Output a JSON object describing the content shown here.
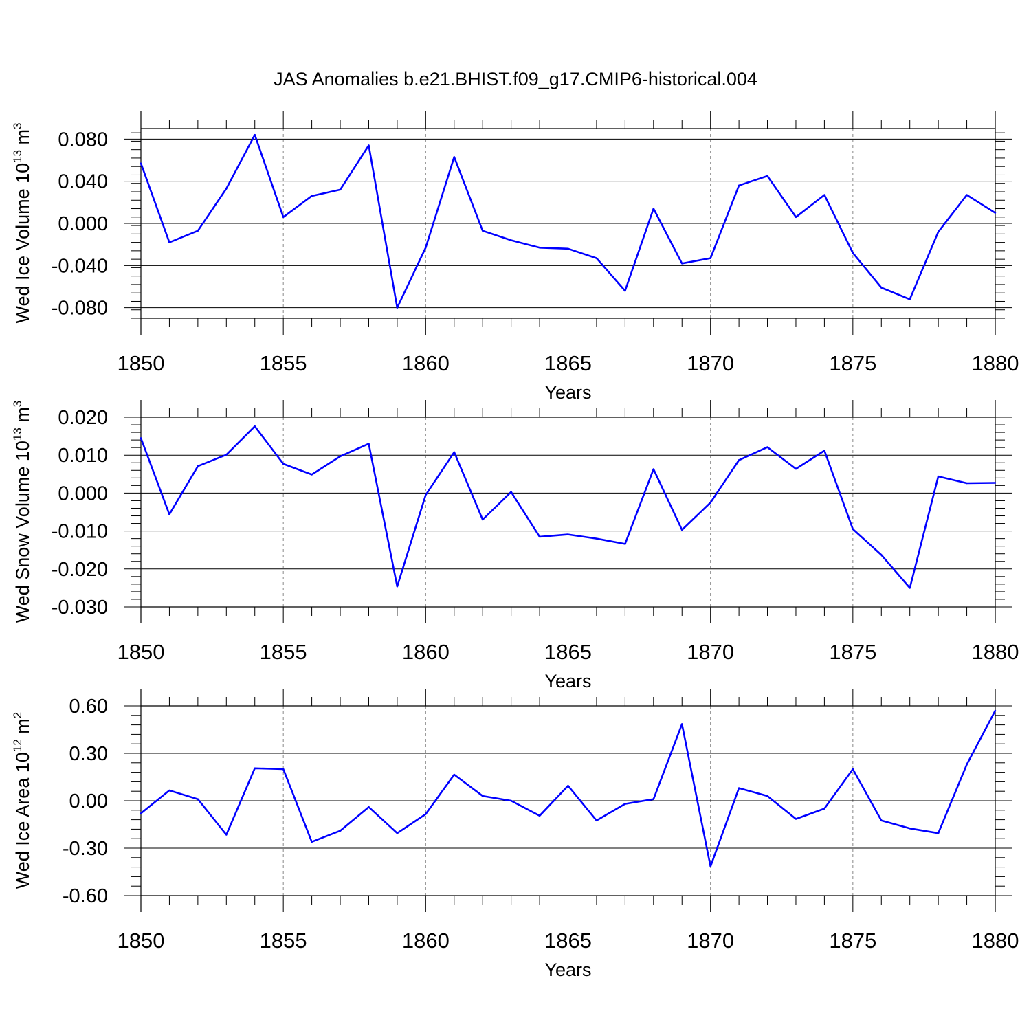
{
  "title": "JAS Anomalies b.e21.BHIST.f09_g17.CMIP6-historical.004",
  "colors": {
    "line": "#0000ff",
    "axis": "#000000",
    "grid": "#888888"
  },
  "chart_data": [
    {
      "type": "line",
      "ylabel": "Wed Ice Volume",
      "yunit_base": "10",
      "yunit_exp": "13",
      "yunit_suffix": "m",
      "yunit_suffix_exp": "3",
      "xlabel": "Years",
      "xlim": [
        1850,
        1880
      ],
      "ylim": [
        -0.09,
        0.09
      ],
      "yticks": [
        -0.08,
        -0.04,
        0.0,
        0.04,
        0.08
      ],
      "ytick_labels": [
        "-0.080",
        "-0.040",
        "0.000",
        "0.040",
        "0.080"
      ],
      "xticks": [
        1850,
        1855,
        1860,
        1865,
        1870,
        1875,
        1880
      ],
      "xtick_labels": [
        "1850",
        "1855",
        "1860",
        "1865",
        "1870",
        "1875",
        "1880"
      ],
      "series": [
        {
          "name": "Wed Ice Volume",
          "x": [
            1850,
            1851,
            1852,
            1853,
            1854,
            1855,
            1856,
            1857,
            1858,
            1859,
            1860,
            1861,
            1862,
            1863,
            1864,
            1865,
            1866,
            1867,
            1868,
            1869,
            1870,
            1871,
            1872,
            1873,
            1874,
            1875,
            1876,
            1877,
            1878,
            1879,
            1880
          ],
          "values": [
            0.057,
            -0.018,
            -0.007,
            0.033,
            0.084,
            0.006,
            0.026,
            0.032,
            0.074,
            -0.08,
            -0.023,
            0.063,
            -0.007,
            -0.016,
            -0.023,
            -0.024,
            -0.033,
            -0.064,
            0.014,
            -0.038,
            -0.033,
            0.036,
            0.045,
            0.006,
            0.027,
            -0.028,
            -0.061,
            -0.072,
            -0.008,
            0.027,
            0.01
          ]
        }
      ]
    },
    {
      "type": "line",
      "ylabel": "Wed Snow Volume",
      "yunit_base": "10",
      "yunit_exp": "13",
      "yunit_suffix": "m",
      "yunit_suffix_exp": "3",
      "xlabel": "Years",
      "xlim": [
        1850,
        1880
      ],
      "ylim": [
        -0.03,
        0.02
      ],
      "yticks": [
        -0.03,
        -0.02,
        -0.01,
        0.0,
        0.01,
        0.02
      ],
      "ytick_labels": [
        "-0.030",
        "-0.020",
        "-0.010",
        "0.000",
        "0.010",
        "0.020"
      ],
      "xticks": [
        1850,
        1855,
        1860,
        1865,
        1870,
        1875,
        1880
      ],
      "xtick_labels": [
        "1850",
        "1855",
        "1860",
        "1865",
        "1870",
        "1875",
        "1880"
      ],
      "series": [
        {
          "name": "Wed Snow Volume",
          "x": [
            1850,
            1851,
            1852,
            1853,
            1854,
            1855,
            1856,
            1857,
            1858,
            1859,
            1860,
            1861,
            1862,
            1863,
            1864,
            1865,
            1866,
            1867,
            1868,
            1869,
            1870,
            1871,
            1872,
            1873,
            1874,
            1875,
            1876,
            1877,
            1878,
            1879,
            1880
          ],
          "values": [
            0.0145,
            -0.0056,
            0.0071,
            0.0101,
            0.0176,
            0.0077,
            0.0049,
            0.0097,
            0.013,
            -0.0246,
            -0.0005,
            0.0108,
            -0.007,
            0.0003,
            -0.0115,
            -0.0109,
            -0.012,
            -0.0134,
            0.0063,
            -0.0097,
            -0.0025,
            0.0087,
            0.0121,
            0.0064,
            0.0112,
            -0.0095,
            -0.0163,
            -0.025,
            0.0044,
            0.0026,
            0.0027
          ]
        }
      ]
    },
    {
      "type": "line",
      "ylabel": "Wed Ice Area",
      "yunit_base": "10",
      "yunit_exp": "12",
      "yunit_suffix": "m",
      "yunit_suffix_exp": "2",
      "xlabel": "Years",
      "xlim": [
        1850,
        1880
      ],
      "ylim": [
        -0.6,
        0.6
      ],
      "yticks": [
        -0.6,
        -0.3,
        0.0,
        0.3,
        0.6
      ],
      "ytick_labels": [
        "-0.60",
        "-0.30",
        "0.00",
        "0.30",
        "0.60"
      ],
      "xticks": [
        1850,
        1855,
        1860,
        1865,
        1870,
        1875,
        1880
      ],
      "xtick_labels": [
        "1850",
        "1855",
        "1860",
        "1865",
        "1870",
        "1875",
        "1880"
      ],
      "series": [
        {
          "name": "Wed Ice Area",
          "x": [
            1850,
            1851,
            1852,
            1853,
            1854,
            1855,
            1856,
            1857,
            1858,
            1859,
            1860,
            1861,
            1862,
            1863,
            1864,
            1865,
            1866,
            1867,
            1868,
            1869,
            1870,
            1871,
            1872,
            1873,
            1874,
            1875,
            1876,
            1877,
            1878,
            1879,
            1880
          ],
          "values": [
            -0.08,
            0.065,
            0.01,
            -0.215,
            0.205,
            0.2,
            -0.26,
            -0.19,
            -0.04,
            -0.205,
            -0.085,
            0.165,
            0.03,
            0.0,
            -0.095,
            0.095,
            -0.125,
            -0.02,
            0.01,
            0.485,
            -0.415,
            0.08,
            0.03,
            -0.115,
            -0.05,
            0.2,
            -0.125,
            -0.175,
            -0.205,
            0.23,
            0.57
          ]
        }
      ]
    }
  ]
}
